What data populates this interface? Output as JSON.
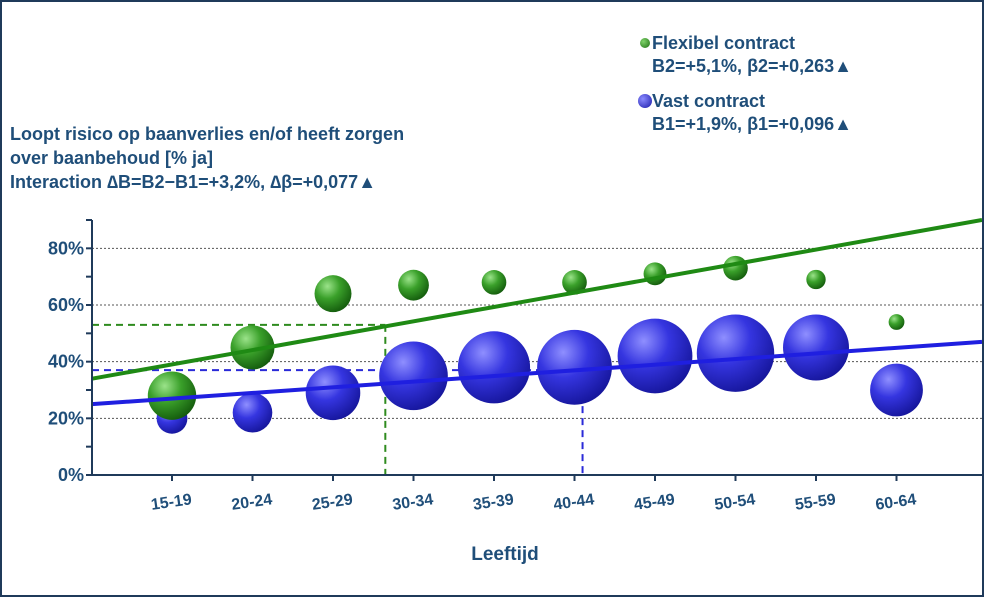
{
  "title_lines": [
    "Loopt risico op baanverlies en/of heeft zorgen",
    "over baanbehoud [% ja]",
    "Interaction ∆B=B2−B1=+3,2%, ∆β=+0,077▲"
  ],
  "legend": [
    {
      "name": "Flexibel contract",
      "stat": "B2=+5,1%,  β2=+0,263▲",
      "color": "#2e8b1e"
    },
    {
      "name": "Vast contract",
      "stat": "B1=+1,9%,  β1=+0,096▲",
      "color": "#2a2ad8"
    }
  ],
  "chart_data": {
    "type": "scatter",
    "subtype": "bubble",
    "xlabel": "Leeftijd",
    "ylabel": "",
    "categories": [
      "15-19",
      "20-24",
      "25-29",
      "30-34",
      "35-39",
      "40-44",
      "45-49",
      "50-54",
      "55-59",
      "60-64"
    ],
    "yticks": [
      "0%",
      "20%",
      "40%",
      "60%",
      "80%"
    ],
    "ylim": [
      0,
      90
    ],
    "grid": "horizontal dotted",
    "series": [
      {
        "name": "Flexibel contract",
        "color": "#2e8b1e",
        "values": [
          28,
          45,
          64,
          67,
          68,
          68,
          71,
          73,
          69,
          54
        ],
        "bubble_size": [
          0.55,
          0.5,
          0.42,
          0.35,
          0.28,
          0.28,
          0.26,
          0.28,
          0.22,
          0.18
        ],
        "trendline": {
          "start": 34,
          "end": 90
        }
      },
      {
        "name": "Vast contract",
        "color": "#2a2ad8",
        "values": [
          20,
          22,
          29,
          35,
          38,
          38,
          42,
          43,
          45,
          30
        ],
        "bubble_size": [
          0.35,
          0.45,
          0.62,
          0.78,
          0.82,
          0.85,
          0.85,
          0.88,
          0.75,
          0.6
        ],
        "trendline": {
          "start": 25,
          "end": 47
        }
      }
    ],
    "reference_lines": [
      {
        "series": "Flexibel contract",
        "y": 53,
        "x_category_pos": 2.65
      },
      {
        "series": "Vast contract",
        "y": 37,
        "x_category_pos": 5.1
      }
    ]
  }
}
